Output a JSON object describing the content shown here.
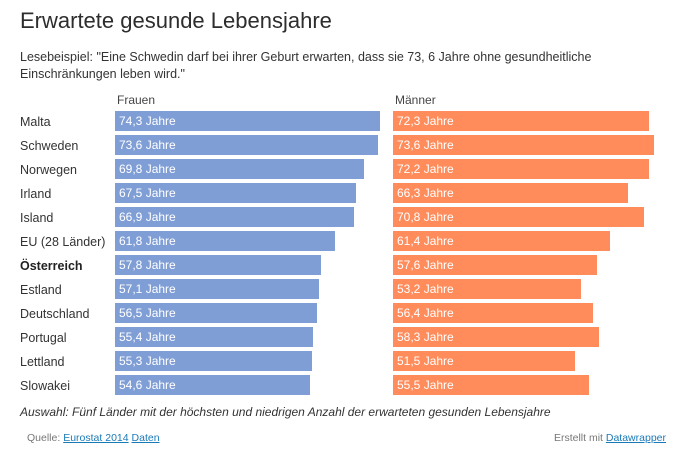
{
  "header": {
    "title": "Erwartete gesunde Lebensjahre",
    "subtitle": "Lesebeispiel: \"Eine Schwedin darf bei ihrer Geburt erwarten, dass sie 73, 6 Jahre ohne gesundheitliche Einschränkungen leben wird.\""
  },
  "chart_data": {
    "type": "bar",
    "orientation": "horizontal",
    "categories": [
      "Malta",
      "Schweden",
      "Norwegen",
      "Irland",
      "Island",
      "EU (28 Länder)",
      "Österreich",
      "Estland",
      "Deutschland",
      "Portugal",
      "Lettland",
      "Slowakei"
    ],
    "highlighted_category": "Österreich",
    "value_unit": "Jahre",
    "series": [
      {
        "name": "Frauen",
        "color": "#7f9ed6",
        "values": [
          74.3,
          73.6,
          69.8,
          67.5,
          66.9,
          61.8,
          57.8,
          57.1,
          56.5,
          55.4,
          55.3,
          54.6
        ],
        "labels": [
          "74,3 Jahre",
          "73,6 Jahre",
          "69,8 Jahre",
          "67,5 Jahre",
          "66,9 Jahre",
          "61,8 Jahre",
          "57,8 Jahre",
          "57,1 Jahre",
          "56,5 Jahre",
          "55,4 Jahre",
          "55,3 Jahre",
          "54,6 Jahre"
        ]
      },
      {
        "name": "Männer",
        "color": "#ff8c5a",
        "values": [
          72.3,
          73.6,
          72.2,
          66.3,
          70.8,
          61.4,
          57.6,
          53.2,
          56.4,
          58.3,
          51.5,
          55.5
        ],
        "labels": [
          "72,3 Jahre",
          "73,6 Jahre",
          "72,2 Jahre",
          "66,3 Jahre",
          "70,8 Jahre",
          "61,4 Jahre",
          "57,6 Jahre",
          "53,2 Jahre",
          "56,4 Jahre",
          "58,3 Jahre",
          "51,5 Jahre",
          "55,5 Jahre"
        ]
      }
    ],
    "xlim": [
      0,
      74.3
    ]
  },
  "notes": "Auswahl: Fünf Länder mit der höchsten und niedrigen Anzahl der erwarteten gesunden Lebensjahre",
  "footer": {
    "source_prefix": "Quelle:",
    "source_link": "Eurostat 2014",
    "data_link": "Daten",
    "credit_prefix": "Erstellt mit",
    "credit_link": "Datawrapper"
  }
}
